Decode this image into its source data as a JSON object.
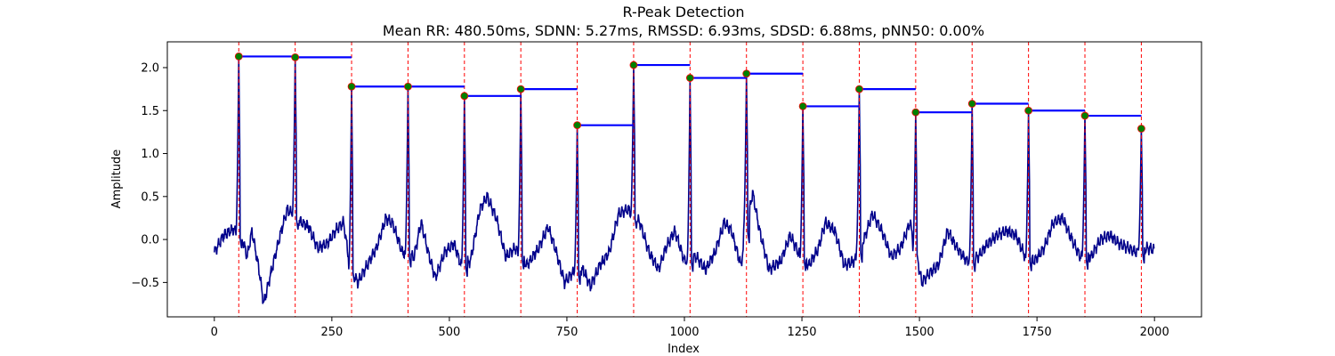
{
  "chart_data": {
    "type": "line",
    "title": "R-Peak Detection",
    "subtitle": "Mean RR: 480.50ms, SDNN: 5.27ms, RMSSD: 6.93ms, SDSD: 6.88ms, pNN50: 0.00%",
    "xlabel": "Index",
    "ylabel": "Amplitude",
    "xlim": [
      -100,
      2100
    ],
    "ylim": [
      -0.9,
      2.3
    ],
    "xticks": [
      0,
      250,
      500,
      750,
      1000,
      1250,
      1500,
      1750,
      2000
    ],
    "yticks": [
      -0.5,
      0.0,
      0.5,
      1.0,
      1.5,
      2.0
    ],
    "xtick_labels": [
      "0",
      "250",
      "500",
      "750",
      "1000",
      "1250",
      "1500",
      "1750",
      "2000"
    ],
    "ytick_labels": [
      "−0.5",
      "0.0",
      "0.5",
      "1.0",
      "1.5",
      "2.0"
    ],
    "grid": false,
    "colors": {
      "signal": "#00008b",
      "peak_marker": "#008000",
      "peak_edge": "#ff0000",
      "peak_line": "#ff0000",
      "rr_segment": "#0000ff"
    },
    "peaks": {
      "x": [
        52,
        172,
        292,
        412,
        532,
        652,
        772,
        892,
        1012,
        1132,
        1252,
        1372,
        1492,
        1612,
        1732,
        1852,
        1972
      ],
      "y": [
        2.13,
        2.12,
        1.78,
        1.78,
        1.67,
        1.75,
        1.33,
        2.03,
        1.88,
        1.93,
        1.55,
        1.75,
        1.48,
        1.58,
        1.5,
        1.44,
        1.29
      ]
    },
    "signal_length": 2000,
    "signal_baseline": [
      [
        0,
        -0.15
      ],
      [
        20,
        0.05
      ],
      [
        40,
        0.12
      ],
      [
        60,
        0.0
      ],
      [
        70,
        -0.2
      ],
      [
        80,
        0.1
      ],
      [
        95,
        -0.35
      ],
      [
        105,
        -0.75
      ],
      [
        120,
        -0.4
      ],
      [
        140,
        0.05
      ],
      [
        155,
        0.35
      ],
      [
        165,
        0.3
      ],
      [
        185,
        0.2
      ],
      [
        200,
        0.15
      ],
      [
        220,
        -0.1
      ],
      [
        240,
        -0.05
      ],
      [
        260,
        0.12
      ],
      [
        275,
        0.2
      ],
      [
        288,
        -0.3
      ],
      [
        305,
        -0.5
      ],
      [
        320,
        -0.35
      ],
      [
        345,
        -0.1
      ],
      [
        365,
        0.25
      ],
      [
        380,
        0.18
      ],
      [
        400,
        -0.15
      ],
      [
        425,
        -0.2
      ],
      [
        440,
        0.2
      ],
      [
        455,
        -0.15
      ],
      [
        470,
        -0.45
      ],
      [
        490,
        -0.15
      ],
      [
        510,
        -0.05
      ],
      [
        525,
        -0.3
      ],
      [
        545,
        -0.25
      ],
      [
        565,
        0.35
      ],
      [
        580,
        0.5
      ],
      [
        600,
        0.25
      ],
      [
        620,
        -0.2
      ],
      [
        640,
        -0.1
      ],
      [
        665,
        -0.3
      ],
      [
        690,
        -0.1
      ],
      [
        710,
        0.15
      ],
      [
        725,
        -0.1
      ],
      [
        745,
        -0.5
      ],
      [
        760,
        -0.4
      ],
      [
        785,
        -0.35
      ],
      [
        800,
        -0.55
      ],
      [
        820,
        -0.3
      ],
      [
        840,
        -0.15
      ],
      [
        860,
        0.3
      ],
      [
        880,
        0.35
      ],
      [
        905,
        0.2
      ],
      [
        925,
        -0.15
      ],
      [
        945,
        -0.35
      ],
      [
        960,
        -0.1
      ],
      [
        980,
        0.1
      ],
      [
        1000,
        -0.25
      ],
      [
        1025,
        -0.2
      ],
      [
        1045,
        -0.35
      ],
      [
        1065,
        -0.15
      ],
      [
        1085,
        0.2
      ],
      [
        1100,
        0.1
      ],
      [
        1120,
        -0.3
      ],
      [
        1145,
        0.55
      ],
      [
        1160,
        0.1
      ],
      [
        1180,
        -0.35
      ],
      [
        1205,
        -0.25
      ],
      [
        1225,
        0.05
      ],
      [
        1242,
        -0.15
      ],
      [
        1265,
        -0.3
      ],
      [
        1285,
        -0.1
      ],
      [
        1300,
        0.2
      ],
      [
        1320,
        0.1
      ],
      [
        1340,
        -0.3
      ],
      [
        1362,
        -0.25
      ],
      [
        1385,
        0.05
      ],
      [
        1400,
        0.3
      ],
      [
        1420,
        0.1
      ],
      [
        1440,
        -0.2
      ],
      [
        1460,
        -0.1
      ],
      [
        1480,
        0.2
      ],
      [
        1505,
        -0.5
      ],
      [
        1520,
        -0.4
      ],
      [
        1540,
        -0.3
      ],
      [
        1560,
        0.1
      ],
      [
        1580,
        -0.1
      ],
      [
        1600,
        -0.25
      ],
      [
        1625,
        -0.2
      ],
      [
        1645,
        -0.05
      ],
      [
        1665,
        0.05
      ],
      [
        1685,
        0.1
      ],
      [
        1705,
        0.05
      ],
      [
        1725,
        -0.2
      ],
      [
        1745,
        -0.25
      ],
      [
        1765,
        -0.1
      ],
      [
        1785,
        0.2
      ],
      [
        1805,
        0.25
      ],
      [
        1820,
        0.05
      ],
      [
        1842,
        -0.2
      ],
      [
        1865,
        -0.2
      ],
      [
        1885,
        0.0
      ],
      [
        1905,
        0.05
      ],
      [
        1925,
        -0.05
      ],
      [
        1945,
        -0.1
      ],
      [
        1962,
        -0.15
      ],
      [
        1985,
        -0.1
      ],
      [
        2000,
        -0.12
      ]
    ]
  }
}
